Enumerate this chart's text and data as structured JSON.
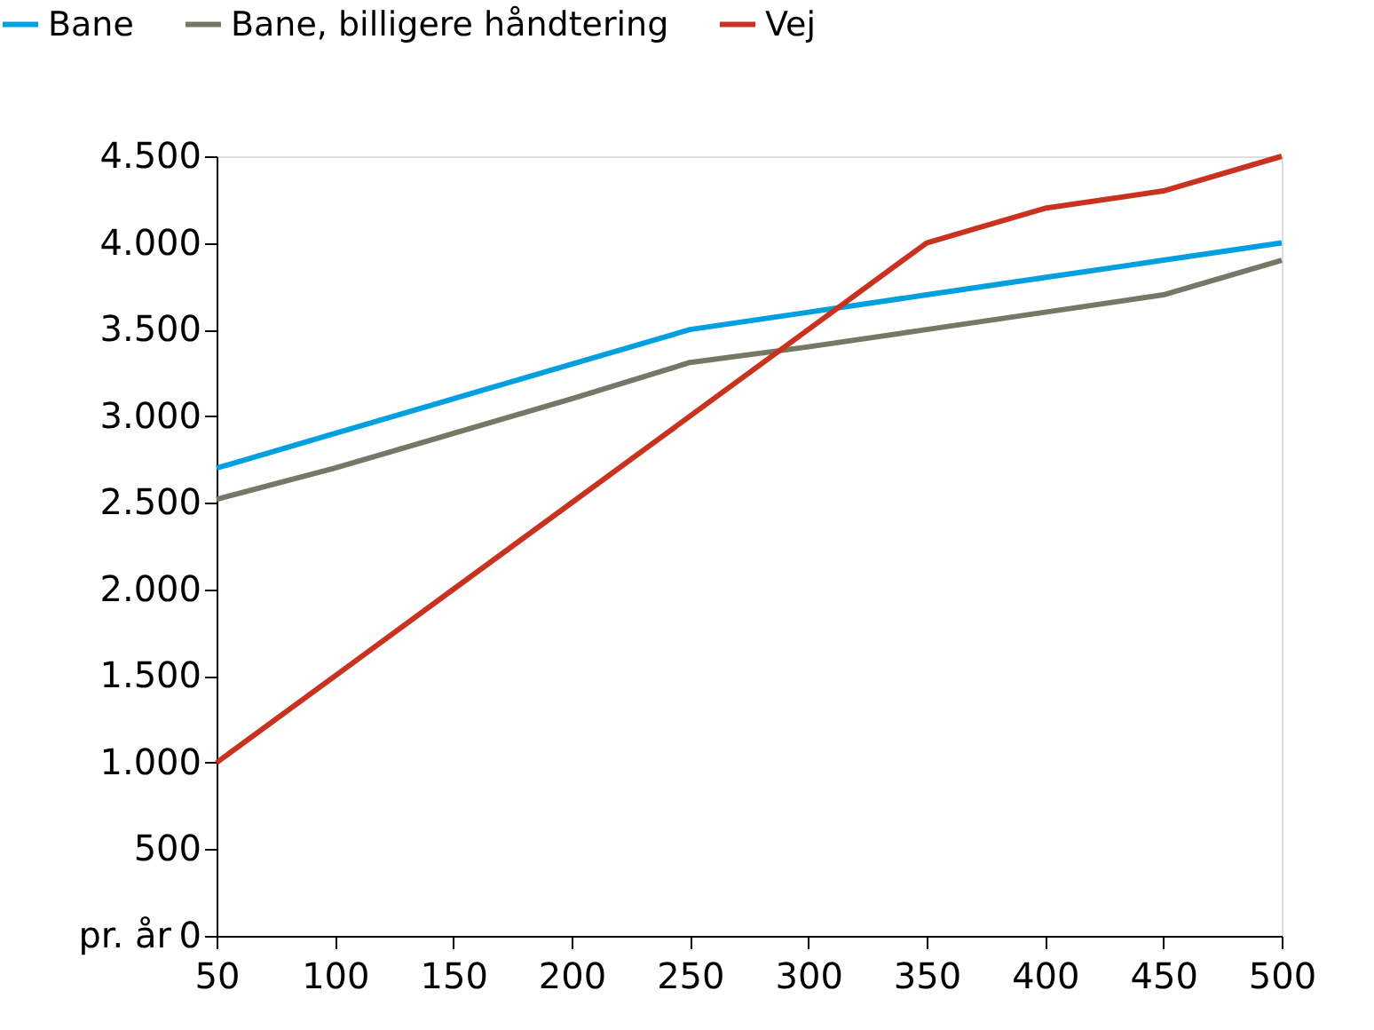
{
  "chart_data": {
    "type": "line",
    "ylabel": "pr. år",
    "x": [
      50,
      100,
      150,
      200,
      250,
      300,
      350,
      400,
      450,
      500
    ],
    "series": [
      {
        "name": "Bane",
        "color": "#00a0e0",
        "values": [
          2700,
          2900,
          3100,
          3300,
          3500,
          3600,
          3700,
          3800,
          3900,
          4000
        ]
      },
      {
        "name": "Bane, billigere håndtering",
        "color": "#767765",
        "values": [
          2520,
          2700,
          2900,
          3100,
          3310,
          3400,
          3500,
          3600,
          3700,
          3900
        ]
      },
      {
        "name": "Vej",
        "color": "#c8321e",
        "values": [
          1000,
          1500,
          2000,
          2500,
          3000,
          3500,
          4000,
          4200,
          4300,
          4500
        ]
      }
    ],
    "xlim": [
      50,
      500
    ],
    "xticks": [
      50,
      100,
      150,
      200,
      250,
      300,
      350,
      400,
      450,
      500
    ],
    "ylim": [
      0,
      4500
    ],
    "yticks": [
      0,
      500,
      {
        "value": 1000,
        "label": "1.000"
      },
      {
        "value": 1500,
        "label": "1.500"
      },
      {
        "value": 2000,
        "label": "2.000"
      },
      {
        "value": 2500,
        "label": "2.500"
      },
      {
        "value": 3000,
        "label": "3.000"
      },
      {
        "value": 3500,
        "label": "3.500"
      },
      {
        "value": 4000,
        "label": "4.000"
      },
      {
        "value": 4500,
        "label": "4.500"
      }
    ],
    "grid": false,
    "legend": "top",
    "marker": "none",
    "line_style": "solid"
  }
}
